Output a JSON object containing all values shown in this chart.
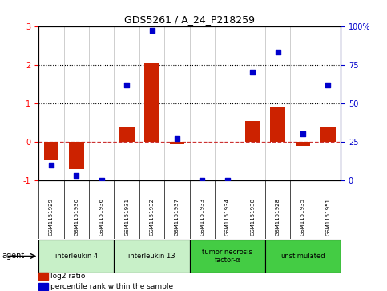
{
  "title": "GDS5261 / A_24_P218259",
  "samples": [
    "GSM1151929",
    "GSM1151930",
    "GSM1151936",
    "GSM1151931",
    "GSM1151932",
    "GSM1151937",
    "GSM1151933",
    "GSM1151934",
    "GSM1151938",
    "GSM1151928",
    "GSM1151935",
    "GSM1151951"
  ],
  "log2_ratio": [
    -0.45,
    -0.7,
    0.0,
    0.4,
    2.05,
    -0.07,
    0.0,
    0.0,
    0.55,
    0.9,
    -0.1,
    0.38
  ],
  "percentile_rank": [
    10,
    3,
    0,
    62,
    97,
    27,
    0,
    0,
    70,
    83,
    30,
    62
  ],
  "groups": [
    {
      "label": "interleukin 4",
      "start": 0,
      "end": 2,
      "color": "#c8f0c8"
    },
    {
      "label": "interleukin 13",
      "start": 3,
      "end": 5,
      "color": "#c8f0c8"
    },
    {
      "label": "tumor necrosis\nfactor-α",
      "start": 6,
      "end": 8,
      "color": "#44cc44"
    },
    {
      "label": "unstimulated",
      "start": 9,
      "end": 11,
      "color": "#44cc44"
    }
  ],
  "ylim_left": [
    -1.0,
    3.0
  ],
  "ylim_right": [
    0,
    100
  ],
  "yticks_left": [
    -1,
    0,
    1,
    2,
    3
  ],
  "yticks_right": [
    0,
    25,
    50,
    75,
    100
  ],
  "yticklabels_right": [
    "0",
    "25",
    "50",
    "75",
    "100%"
  ],
  "bar_color": "#cc2200",
  "dot_color": "#0000cc",
  "hline_color": "#cc3333",
  "dotted_lines": [
    1.0,
    2.0
  ],
  "legend_items": [
    {
      "label": "log2 ratio",
      "color": "#cc2200"
    },
    {
      "label": "percentile rank within the sample",
      "color": "#0000cc"
    }
  ],
  "sample_bg_color": "#c8c8c8",
  "plot_bg_color": "#ffffff"
}
